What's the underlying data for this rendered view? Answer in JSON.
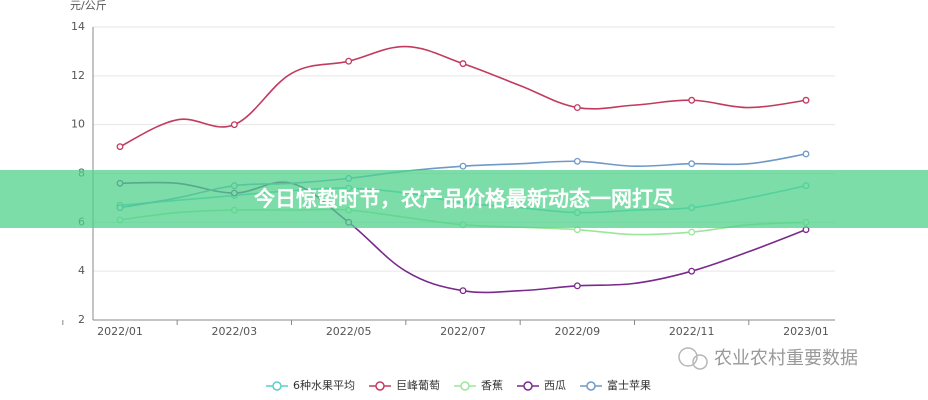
{
  "chart_data": {
    "type": "line",
    "y_label": "元/公斤",
    "categories": [
      "2022/01",
      null,
      "2022/03",
      null,
      "2022/05",
      null,
      "2022/07",
      null,
      "2022/09",
      null,
      "2022/11",
      null,
      "2023/01"
    ],
    "series": [
      {
        "name": "6种水果平均",
        "color": "#5ccfc8",
        "values": [
          6.7,
          6.9,
          7.1,
          7.3,
          7.4,
          7.2,
          6.8,
          6.6,
          6.4,
          6.5,
          6.6,
          7.0,
          7.5
        ]
      },
      {
        "name": "巨峰葡萄",
        "color": "#c23b5e",
        "values": [
          9.1,
          10.2,
          10.0,
          12.1,
          12.6,
          13.2,
          12.5,
          11.6,
          10.7,
          10.8,
          11.0,
          10.7,
          11.0
        ]
      },
      {
        "name": "香蕉",
        "color": "#9be69b",
        "values": [
          6.1,
          6.4,
          6.5,
          6.5,
          6.5,
          6.2,
          5.9,
          5.8,
          5.7,
          5.5,
          5.6,
          5.9,
          6.0
        ]
      },
      {
        "name": "西瓜",
        "color": "#7a2a8c",
        "values": [
          7.6,
          7.6,
          7.2,
          7.6,
          6.0,
          4.0,
          3.2,
          3.2,
          3.4,
          3.5,
          4.0,
          4.8,
          5.7
        ]
      },
      {
        "name": "富士苹果",
        "color": "#6f9ac8",
        "values": [
          6.6,
          7.0,
          7.5,
          7.6,
          7.8,
          8.1,
          8.3,
          8.4,
          8.5,
          8.3,
          8.4,
          8.4,
          8.8
        ]
      }
    ],
    "ylim": [
      2,
      14
    ],
    "yticks": [
      2,
      4,
      6,
      8,
      10,
      12,
      14
    ],
    "grid": true
  },
  "banner": "今日惊蛰时节，农产品价格最新动态一网打尽",
  "watermark": "农业农村重要数据"
}
